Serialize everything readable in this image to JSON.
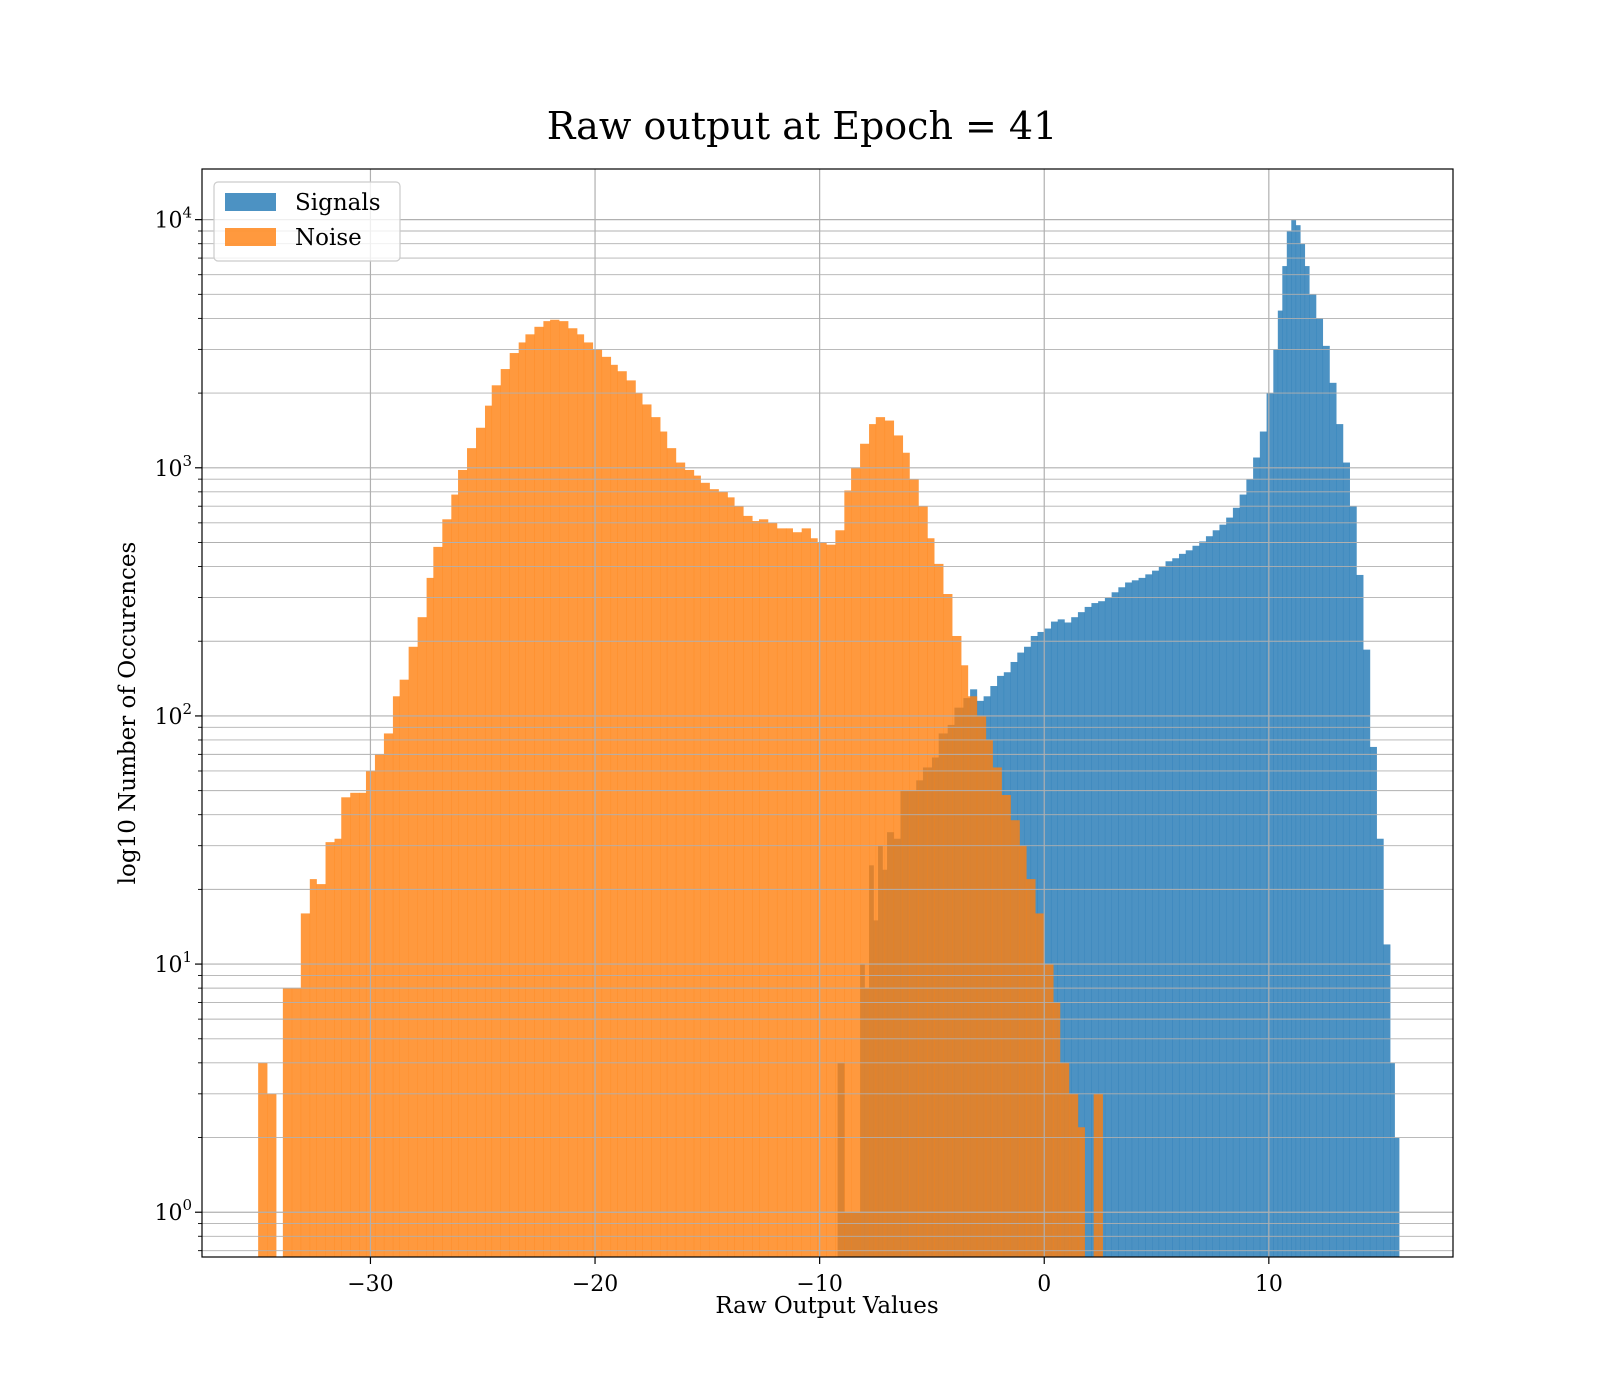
{
  "chart_data": {
    "type": "histogram",
    "title": "Raw output at Epoch = 41",
    "xlabel": "Raw Output Values",
    "ylabel": "log10 Number of Occurences",
    "xlim": [
      -37.5,
      18.2
    ],
    "ylim": [
      0.66,
      16000
    ],
    "yscale": "log",
    "grid": true,
    "legend_position": "upper-left",
    "x_ticks": [
      {
        "value": -30,
        "label": "−30"
      },
      {
        "value": -20,
        "label": "−20"
      },
      {
        "value": -10,
        "label": "−10"
      },
      {
        "value": 0,
        "label": "0"
      },
      {
        "value": 10,
        "label": "10"
      }
    ],
    "y_ticks": [
      {
        "value": 1,
        "base": "10",
        "exp": "0"
      },
      {
        "value": 10,
        "base": "10",
        "exp": "1"
      },
      {
        "value": 100,
        "base": "10",
        "exp": "2"
      },
      {
        "value": 1000,
        "base": "10",
        "exp": "3"
      },
      {
        "value": 10000,
        "base": "10",
        "exp": "4"
      }
    ],
    "series": [
      {
        "name": "Signals",
        "color": "#1f77b4",
        "opacity": 0.8,
        "bins": [
          {
            "x": -9.2,
            "v": 4
          },
          {
            "x": -8.9,
            "v": 1
          },
          {
            "x": -8.2,
            "v": 10
          },
          {
            "x": -8.0,
            "v": 8
          },
          {
            "x": -7.8,
            "v": 25
          },
          {
            "x": -7.6,
            "v": 15
          },
          {
            "x": -7.4,
            "v": 30
          },
          {
            "x": -7.2,
            "v": 24
          },
          {
            "x": -7.0,
            "v": 34
          },
          {
            "x": -6.7,
            "v": 32
          },
          {
            "x": -6.4,
            "v": 50
          },
          {
            "x": -6.1,
            "v": 50
          },
          {
            "x": -5.7,
            "v": 55
          },
          {
            "x": -5.4,
            "v": 62
          },
          {
            "x": -5.0,
            "v": 68
          },
          {
            "x": -4.7,
            "v": 85
          },
          {
            "x": -4.3,
            "v": 92
          },
          {
            "x": -4.0,
            "v": 108
          },
          {
            "x": -3.6,
            "v": 118
          },
          {
            "x": -3.3,
            "v": 128
          },
          {
            "x": -3.0,
            "v": 115
          },
          {
            "x": -2.7,
            "v": 120
          },
          {
            "x": -2.4,
            "v": 132
          },
          {
            "x": -2.1,
            "v": 145
          },
          {
            "x": -1.8,
            "v": 150
          },
          {
            "x": -1.5,
            "v": 165
          },
          {
            "x": -1.2,
            "v": 180
          },
          {
            "x": -0.9,
            "v": 190
          },
          {
            "x": -0.6,
            "v": 210
          },
          {
            "x": -0.3,
            "v": 218
          },
          {
            "x": 0.0,
            "v": 225
          },
          {
            "x": 0.3,
            "v": 240
          },
          {
            "x": 0.6,
            "v": 245
          },
          {
            "x": 0.9,
            "v": 238
          },
          {
            "x": 1.2,
            "v": 250
          },
          {
            "x": 1.5,
            "v": 262
          },
          {
            "x": 1.8,
            "v": 275
          },
          {
            "x": 2.1,
            "v": 285
          },
          {
            "x": 2.4,
            "v": 290
          },
          {
            "x": 2.7,
            "v": 300
          },
          {
            "x": 3.0,
            "v": 315
          },
          {
            "x": 3.3,
            "v": 330
          },
          {
            "x": 3.6,
            "v": 345
          },
          {
            "x": 3.9,
            "v": 352
          },
          {
            "x": 4.2,
            "v": 360
          },
          {
            "x": 4.5,
            "v": 372
          },
          {
            "x": 4.8,
            "v": 385
          },
          {
            "x": 5.1,
            "v": 400
          },
          {
            "x": 5.4,
            "v": 420
          },
          {
            "x": 5.7,
            "v": 432
          },
          {
            "x": 6.0,
            "v": 450
          },
          {
            "x": 6.3,
            "v": 465
          },
          {
            "x": 6.6,
            "v": 485
          },
          {
            "x": 6.9,
            "v": 505
          },
          {
            "x": 7.2,
            "v": 530
          },
          {
            "x": 7.5,
            "v": 560
          },
          {
            "x": 7.8,
            "v": 590
          },
          {
            "x": 8.1,
            "v": 630
          },
          {
            "x": 8.4,
            "v": 690
          },
          {
            "x": 8.7,
            "v": 780
          },
          {
            "x": 9.0,
            "v": 900
          },
          {
            "x": 9.3,
            "v": 1100
          },
          {
            "x": 9.6,
            "v": 1400
          },
          {
            "x": 9.9,
            "v": 2000
          },
          {
            "x": 10.2,
            "v": 3000
          },
          {
            "x": 10.4,
            "v": 4300
          },
          {
            "x": 10.6,
            "v": 6500
          },
          {
            "x": 10.8,
            "v": 9000
          },
          {
            "x": 11.0,
            "v": 10000
          },
          {
            "x": 11.2,
            "v": 9500
          },
          {
            "x": 11.4,
            "v": 8000
          },
          {
            "x": 11.6,
            "v": 6500
          },
          {
            "x": 11.8,
            "v": 5000
          },
          {
            "x": 12.1,
            "v": 4000
          },
          {
            "x": 12.4,
            "v": 3100
          },
          {
            "x": 12.7,
            "v": 2200
          },
          {
            "x": 13.0,
            "v": 1500
          },
          {
            "x": 13.3,
            "v": 1050
          },
          {
            "x": 13.6,
            "v": 700
          },
          {
            "x": 13.9,
            "v": 370
          },
          {
            "x": 14.2,
            "v": 185
          },
          {
            "x": 14.5,
            "v": 75
          },
          {
            "x": 14.8,
            "v": 32
          },
          {
            "x": 15.1,
            "v": 12
          },
          {
            "x": 15.4,
            "v": 4
          },
          {
            "x": 15.6,
            "v": 2
          }
        ]
      },
      {
        "name": "Noise",
        "color": "#ff7f0e",
        "opacity": 0.8,
        "bins": [
          {
            "x": -35.0,
            "v": 4
          },
          {
            "x": -34.6,
            "v": 3
          },
          {
            "x": -34.2,
            "v": 0
          },
          {
            "x": -33.9,
            "v": 8
          },
          {
            "x": -33.5,
            "v": 8
          },
          {
            "x": -33.1,
            "v": 16
          },
          {
            "x": -32.7,
            "v": 22
          },
          {
            "x": -32.4,
            "v": 21
          },
          {
            "x": -32.0,
            "v": 31
          },
          {
            "x": -31.6,
            "v": 32
          },
          {
            "x": -31.3,
            "v": 47
          },
          {
            "x": -30.9,
            "v": 49
          },
          {
            "x": -30.5,
            "v": 49
          },
          {
            "x": -30.2,
            "v": 60
          },
          {
            "x": -29.8,
            "v": 70
          },
          {
            "x": -29.4,
            "v": 85
          },
          {
            "x": -29.0,
            "v": 120
          },
          {
            "x": -28.7,
            "v": 140
          },
          {
            "x": -28.3,
            "v": 190
          },
          {
            "x": -27.9,
            "v": 250
          },
          {
            "x": -27.5,
            "v": 360
          },
          {
            "x": -27.2,
            "v": 480
          },
          {
            "x": -26.8,
            "v": 620
          },
          {
            "x": -26.4,
            "v": 780
          },
          {
            "x": -26.1,
            "v": 980
          },
          {
            "x": -25.7,
            "v": 1200
          },
          {
            "x": -25.3,
            "v": 1450
          },
          {
            "x": -24.9,
            "v": 1780
          },
          {
            "x": -24.6,
            "v": 2150
          },
          {
            "x": -24.2,
            "v": 2500
          },
          {
            "x": -23.8,
            "v": 2900
          },
          {
            "x": -23.4,
            "v": 3200
          },
          {
            "x": -23.1,
            "v": 3450
          },
          {
            "x": -22.7,
            "v": 3700
          },
          {
            "x": -22.3,
            "v": 3900
          },
          {
            "x": -22.0,
            "v": 3950
          },
          {
            "x": -21.6,
            "v": 3900
          },
          {
            "x": -21.2,
            "v": 3650
          },
          {
            "x": -20.8,
            "v": 3450
          },
          {
            "x": -20.5,
            "v": 3200
          },
          {
            "x": -20.1,
            "v": 3000
          },
          {
            "x": -19.7,
            "v": 2800
          },
          {
            "x": -19.3,
            "v": 2600
          },
          {
            "x": -19.0,
            "v": 2450
          },
          {
            "x": -18.6,
            "v": 2250
          },
          {
            "x": -18.2,
            "v": 2000
          },
          {
            "x": -17.9,
            "v": 1800
          },
          {
            "x": -17.5,
            "v": 1600
          },
          {
            "x": -17.1,
            "v": 1400
          },
          {
            "x": -16.8,
            "v": 1200
          },
          {
            "x": -16.4,
            "v": 1050
          },
          {
            "x": -16.0,
            "v": 980
          },
          {
            "x": -15.6,
            "v": 930
          },
          {
            "x": -15.3,
            "v": 870
          },
          {
            "x": -14.9,
            "v": 820
          },
          {
            "x": -14.5,
            "v": 800
          },
          {
            "x": -14.1,
            "v": 760
          },
          {
            "x": -13.8,
            "v": 700
          },
          {
            "x": -13.4,
            "v": 640
          },
          {
            "x": -13.0,
            "v": 610
          },
          {
            "x": -12.7,
            "v": 620
          },
          {
            "x": -12.3,
            "v": 600
          },
          {
            "x": -11.9,
            "v": 570
          },
          {
            "x": -11.5,
            "v": 570
          },
          {
            "x": -11.2,
            "v": 550
          },
          {
            "x": -10.8,
            "v": 570
          },
          {
            "x": -10.4,
            "v": 520
          },
          {
            "x": -10.1,
            "v": 500
          },
          {
            "x": -9.7,
            "v": 490
          },
          {
            "x": -9.3,
            "v": 560
          },
          {
            "x": -8.9,
            "v": 810
          },
          {
            "x": -8.6,
            "v": 1000
          },
          {
            "x": -8.2,
            "v": 1250
          },
          {
            "x": -7.8,
            "v": 1500
          },
          {
            "x": -7.5,
            "v": 1600
          },
          {
            "x": -7.1,
            "v": 1550
          },
          {
            "x": -6.7,
            "v": 1350
          },
          {
            "x": -6.3,
            "v": 1150
          },
          {
            "x": -6.0,
            "v": 900
          },
          {
            "x": -5.6,
            "v": 700
          },
          {
            "x": -5.2,
            "v": 520
          },
          {
            "x": -4.9,
            "v": 410
          },
          {
            "x": -4.5,
            "v": 310
          },
          {
            "x": -4.1,
            "v": 210
          },
          {
            "x": -3.7,
            "v": 160
          },
          {
            "x": -3.4,
            "v": 120
          },
          {
            "x": -3.0,
            "v": 100
          },
          {
            "x": -2.6,
            "v": 80
          },
          {
            "x": -2.3,
            "v": 62
          },
          {
            "x": -1.9,
            "v": 48
          },
          {
            "x": -1.5,
            "v": 38
          },
          {
            "x": -1.1,
            "v": 30
          },
          {
            "x": -0.8,
            "v": 22
          },
          {
            "x": -0.4,
            "v": 16
          },
          {
            "x": 0.0,
            "v": 10
          },
          {
            "x": 0.4,
            "v": 7
          },
          {
            "x": 0.7,
            "v": 4
          },
          {
            "x": 1.1,
            "v": 3
          },
          {
            "x": 1.5,
            "v": 2.2
          },
          {
            "x": 1.8,
            "v": 0
          },
          {
            "x": 2.2,
            "v": 3
          }
        ]
      }
    ]
  }
}
